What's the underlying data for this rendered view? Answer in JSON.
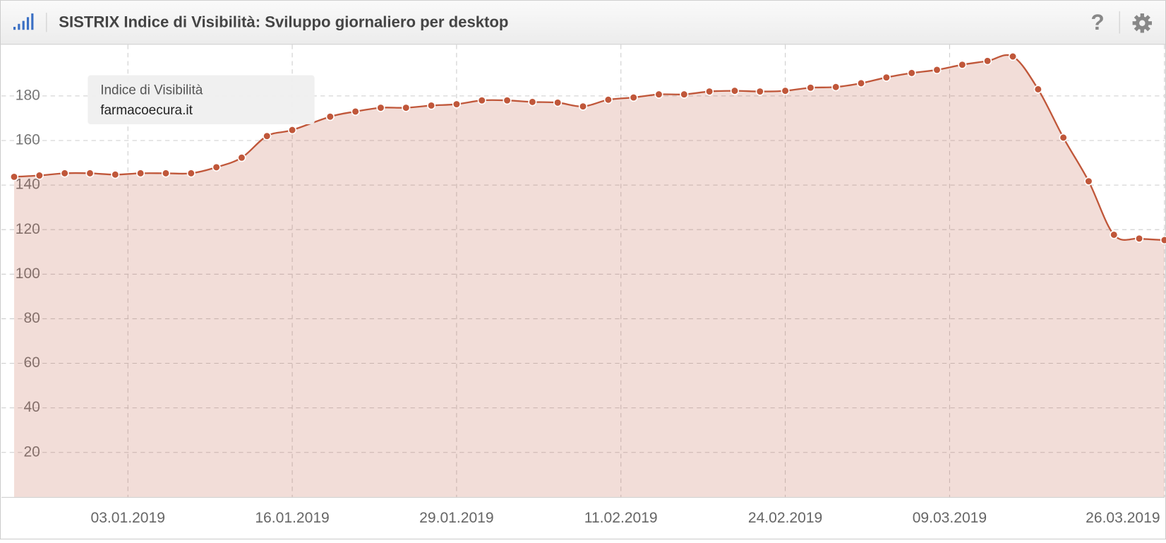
{
  "header": {
    "help": "?"
  },
  "chart_data": {
    "type": "area",
    "title": "SISTRIX Indice di Visibilità: Sviluppo giornaliero per desktop",
    "tooltip_title": "Indice di Visibilità",
    "x": [
      "25.12.2018",
      "27.12.2018",
      "29.12.2018",
      "31.12.2018",
      "02.01.2019",
      "04.01.2019",
      "06.01.2019",
      "08.01.2019",
      "10.01.2019",
      "12.01.2019",
      "14.01.2019",
      "16.01.2019",
      "19.01.2019",
      "21.01.2019",
      "23.01.2019",
      "25.01.2019",
      "27.01.2019",
      "29.01.2019",
      "31.01.2019",
      "02.02.2019",
      "04.02.2019",
      "06.02.2019",
      "08.02.2019",
      "10.02.2019",
      "12.02.2019",
      "14.02.2019",
      "16.02.2019",
      "18.02.2019",
      "20.02.2019",
      "22.02.2019",
      "24.02.2019",
      "26.02.2019",
      "28.02.2019",
      "02.03.2019",
      "04.03.2019",
      "06.03.2019",
      "08.03.2019",
      "10.03.2019",
      "12.03.2019",
      "14.03.2019",
      "16.03.2019",
      "18.03.2019",
      "20.03.2019",
      "22.03.2019",
      "24.03.2019",
      "26.03.2019"
    ],
    "series": [
      {
        "name": "farmacoecura.it",
        "color": "#c0573a",
        "values": [
          143.7,
          144.3,
          145.3,
          145.3,
          144.7,
          145.3,
          145.3,
          145.3,
          148,
          152.3,
          162,
          164.7,
          170.7,
          173,
          174.7,
          174.7,
          175.7,
          176.3,
          178,
          178,
          177.3,
          177,
          175.3,
          178.3,
          179.3,
          180.7,
          180.7,
          182,
          182.3,
          182,
          182.3,
          183.7,
          184,
          185.7,
          188.3,
          190.3,
          191.7,
          194,
          195.7,
          197.7,
          183,
          161.3,
          141.7,
          117.7,
          116,
          115.3
        ]
      }
    ],
    "xlim": [
      "24.12.2018",
      "26.03.2019"
    ],
    "xticks": [
      "03.01.2019",
      "16.01.2019",
      "29.01.2019",
      "11.02.2019",
      "24.02.2019",
      "09.03.2019",
      "26.03.2019"
    ],
    "ylim": [
      0,
      203
    ],
    "yticks": [
      20,
      40,
      60,
      80,
      100,
      120,
      140,
      160,
      180
    ],
    "grid": true
  }
}
